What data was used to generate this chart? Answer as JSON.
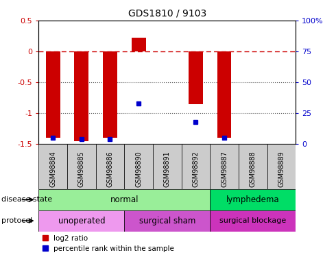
{
  "title": "GDS1810 / 9103",
  "samples": [
    "GSM98884",
    "GSM98885",
    "GSM98886",
    "GSM98890",
    "GSM98891",
    "GSM98892",
    "GSM98887",
    "GSM98888",
    "GSM98889"
  ],
  "log2_ratio": [
    -1.4,
    -1.45,
    -1.4,
    0.22,
    0.0,
    -0.85,
    -1.4,
    0.0,
    0.0
  ],
  "percentile_rank": [
    5,
    4,
    4,
    33,
    0,
    18,
    5,
    0,
    0
  ],
  "ylim": [
    -1.5,
    0.5
  ],
  "y2lim": [
    0,
    100
  ],
  "yticks_left": [
    -1.5,
    -1.0,
    -0.5,
    0.0,
    0.5
  ],
  "yticks_right": [
    0,
    25,
    50,
    75,
    100
  ],
  "bar_color": "#CC0000",
  "point_color": "#0000CC",
  "dashed_line_color": "#CC0000",
  "dotted_line_color": "#555555",
  "bg_color": "#FFFFFF",
  "tick_label_color_left": "#CC0000",
  "tick_label_color_right": "#0000CC",
  "normal_color": "#99EE99",
  "lymphedema_color": "#00DD66",
  "unoperated_color": "#EE99EE",
  "sham_color": "#CC55CC",
  "blockage_color": "#CC33BB",
  "xtick_box_color": "#CCCCCC",
  "bar_width": 0.5
}
